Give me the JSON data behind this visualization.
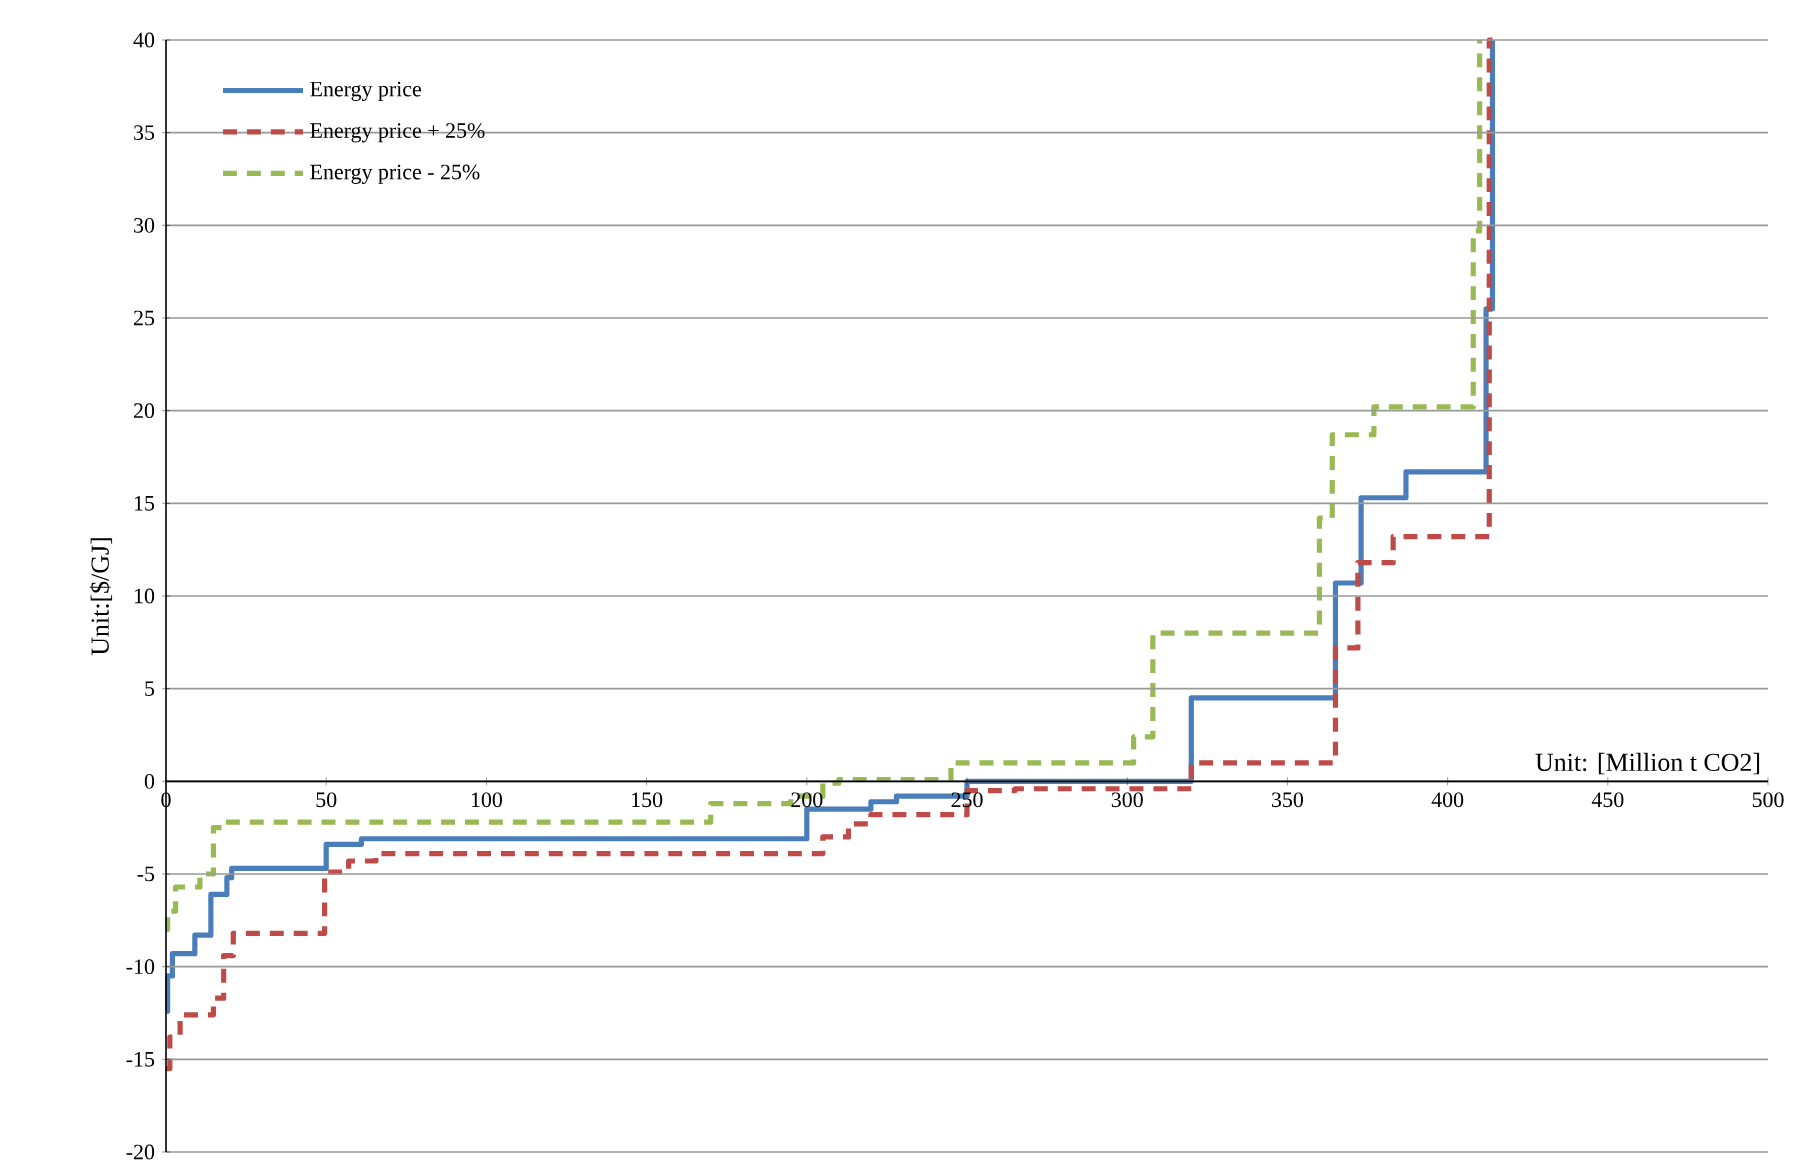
{
  "chart_data": {
    "type": "step",
    "xlabel": "Unit: [Million t CO2]",
    "ylabel": "Unit:[$/GJ]",
    "xlim": [
      0,
      500
    ],
    "xticks": [
      0,
      50,
      100,
      150,
      200,
      250,
      300,
      350,
      400,
      450,
      500
    ],
    "ylim": [
      -20,
      40
    ],
    "yticks": [
      -20,
      -15,
      -10,
      -5,
      0,
      5,
      10,
      15,
      20,
      25,
      30,
      35,
      40
    ],
    "grid": "y",
    "legend": "top left",
    "series": [
      {
        "name": "Energy price",
        "color": "#4a7ebb",
        "line_style": "solid",
        "x": [
          0,
          0.5,
          2,
          9,
          14,
          19,
          20.5,
          50,
          61,
          200,
          220,
          228,
          250,
          320,
          365,
          373,
          387,
          412,
          414
        ],
        "values": [
          -12.4,
          -10.5,
          -9.3,
          -8.3,
          -6.1,
          -5.2,
          -4.7,
          -3.4,
          -3.1,
          -1.5,
          -1.1,
          -0.8,
          0,
          4.5,
          10.7,
          15.3,
          16.7,
          25.5,
          40
        ]
      },
      {
        "name": "Energy price + 25%",
        "color": "#be4b48",
        "line_style": "dashed",
        "x": [
          0,
          1.2,
          4.4,
          14.8,
          18,
          21,
          49.5,
          57,
          65.5,
          205,
          213,
          220,
          250,
          265,
          320,
          365,
          372,
          383,
          413,
          414
        ],
        "values": [
          -15.5,
          -13.8,
          -12.6,
          -11.7,
          -9.4,
          -8.2,
          -4.9,
          -4.3,
          -3.9,
          -3.0,
          -2.3,
          -1.8,
          -0.5,
          -0.4,
          1.0,
          7.2,
          11.8,
          13.2,
          40,
          40
        ]
      },
      {
        "name": "Energy price - 25%",
        "color": "#98b954",
        "line_style": "dashed",
        "x": [
          0,
          0.5,
          3,
          10.6,
          14.8,
          18,
          170,
          195,
          205,
          210,
          245,
          302,
          308,
          360,
          364,
          377,
          408,
          410
        ],
        "values": [
          -8,
          -7,
          -5.7,
          -5,
          -2.5,
          -2.2,
          -1.2,
          -0.8,
          -0.1,
          0.1,
          1.0,
          2.4,
          8,
          14.2,
          18.7,
          20.2,
          29.7,
          40
        ]
      }
    ]
  }
}
